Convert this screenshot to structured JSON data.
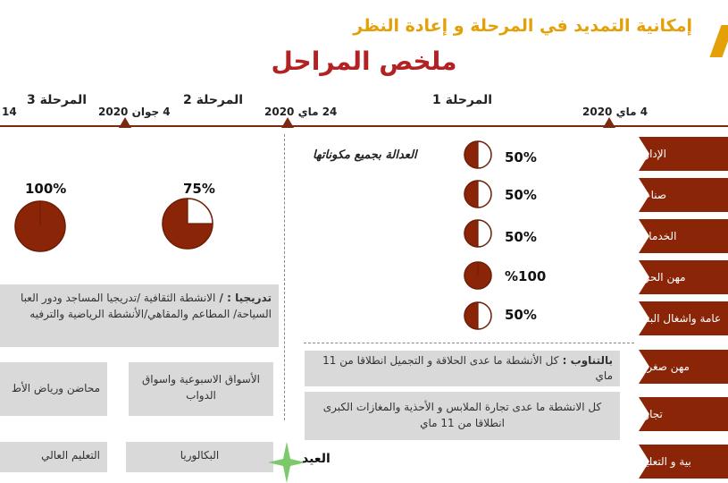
{
  "header": {
    "subtitle": "إمكانية التمديد في المرحلة و إعادة النظر",
    "title": "ملخص المراحل"
  },
  "timeline": {
    "stages": [
      {
        "label": "المرحلة 1"
      },
      {
        "label": "المرحلة 2"
      },
      {
        "label": "المرحلة 3"
      }
    ],
    "dates": [
      {
        "label": "4 ماي 2020"
      },
      {
        "label": "24 ماي 2020"
      },
      {
        "label": "4 جوان 2020"
      }
    ],
    "left_edge_fragment": "14"
  },
  "sectors": [
    {
      "label": "الإدارة",
      "percent": "50%",
      "progress": 0.5
    },
    {
      "label": "صناعة",
      "percent": "50%",
      "progress": 0.5
    },
    {
      "label": "الخدمات",
      "percent": "50%",
      "progress": 0.5
    },
    {
      "label": "مهن الحرة",
      "percent": "%100",
      "progress": 1.0
    },
    {
      "label": "عامة واشغال البناء",
      "percent": "50%",
      "progress": 0.5
    },
    {
      "label": "مهن صغرى"
    },
    {
      "label": "تجارة"
    },
    {
      "label": "بية و التعليم"
    }
  ],
  "justice_note": "العدالة بجميع مكوناتها",
  "stage_progress": [
    {
      "stage": "المرحلة 3",
      "percent": "100%",
      "progress": 1.0
    },
    {
      "stage": "المرحلة 2",
      "percent": "75%",
      "progress": 0.75
    }
  ],
  "boxes": {
    "gradual_title": "تدريجيا : / ",
    "gradual_text": "الانشطة الثقافية /تدريجيا المساجد ودور العبا السياحة/ المطاعم والمقاهي/الأنشطة الرياضية والترفيه",
    "weekly_markets": "الأسواق الاسبوعية واسواق الدواب",
    "nurseries": "محاضن ورياض الأط",
    "bac": "البكالوريا",
    "higher_ed": "التعليم العالي",
    "alternating_title": "بالتناوب : ",
    "alternating_text": "كل الأنشطة ما عدى الحلاقة و التجميل انطلاقا من 11 ماي",
    "trade_text": "كل الانشطة ما عدى تجارة الملابس و الأحذية والمغازات الكبرى انطلاقا من 11 ماي"
  },
  "eid_label": "العيد",
  "colors": {
    "brand_red": "#8B2508",
    "title_red": "#B22222",
    "gold": "#E3A008",
    "box_gray": "#D9D9D9",
    "star_green": "#7CC96A"
  }
}
